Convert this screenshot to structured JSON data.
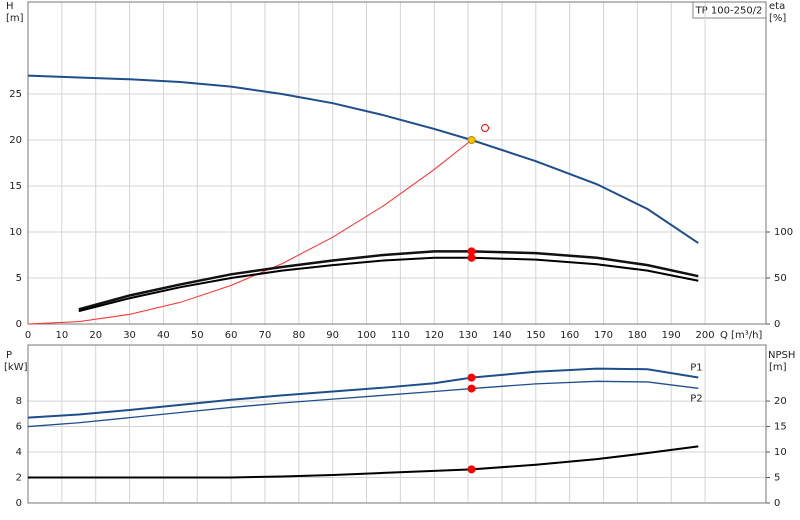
{
  "chart_data": [
    {
      "type": "line",
      "title": "TP 100-250/2",
      "xlabel": "Q [m³/h]",
      "ylabel": "H",
      "yunit": "[m]",
      "y2label": "eta",
      "y2unit": "[%]",
      "x": [
        0,
        15,
        30,
        45,
        60,
        75,
        90,
        105,
        120,
        131,
        150,
        168,
        183,
        198
      ],
      "xlim": [
        0,
        218
      ],
      "xticks": [
        0,
        10,
        20,
        30,
        40,
        50,
        60,
        70,
        80,
        90,
        100,
        110,
        120,
        130,
        140,
        150,
        160,
        170,
        180,
        190,
        200
      ],
      "ylim": [
        0,
        35
      ],
      "yticks": [
        0,
        5,
        10,
        15,
        20,
        25
      ],
      "y2lim": [
        0,
        350
      ],
      "y2ticks": [
        0,
        50,
        100
      ],
      "grid": true,
      "series": [
        {
          "color": "#1f4e8c",
          "values": [
            27.0,
            26.8,
            26.6,
            26.3,
            25.8,
            25.0,
            24.0,
            22.7,
            21.2,
            20.0,
            17.7,
            15.2,
            12.5,
            8.8
          ]
        },
        {
          "color": "#ff3030",
          "values": [
            0,
            0.26,
            1.05,
            2.36,
            4.2,
            6.55,
            9.44,
            12.85,
            16.8,
            20.0,
            null,
            null,
            null,
            null
          ]
        },
        {
          "color": "#111111",
          "axis": "y2",
          "values": [
            null,
            16,
            31,
            43,
            54,
            62,
            69,
            75,
            79,
            79,
            77,
            72,
            64,
            52
          ]
        },
        {
          "color": "#000000",
          "axis": "y2",
          "values": [
            null,
            14,
            28,
            40,
            50,
            58,
            64,
            69,
            72,
            72,
            70,
            65,
            58,
            47
          ]
        }
      ],
      "markers": [
        {
          "x": 131,
          "y": 20,
          "color": "#f5c400"
        },
        {
          "x": 131,
          "y": 79,
          "axis": "y2",
          "color": "#ff0000"
        },
        {
          "x": 131,
          "y": 72,
          "axis": "y2",
          "color": "#ff0000"
        },
        {
          "x": 135,
          "y": 21.3,
          "color": "#ff0000",
          "hollow": true
        }
      ]
    },
    {
      "type": "line",
      "ylabel": "P",
      "yunit": "[kW]",
      "y2label": "NPSH",
      "y2unit": "[m]",
      "x": [
        0,
        15,
        30,
        45,
        60,
        75,
        90,
        105,
        120,
        131,
        150,
        168,
        183,
        198
      ],
      "xlim": [
        0,
        218
      ],
      "xticks": [
        0,
        10,
        20,
        30,
        40,
        50,
        60,
        70,
        80,
        90,
        100,
        110,
        120,
        130,
        140,
        150,
        160,
        170,
        180,
        190,
        200
      ],
      "ylim": [
        0,
        12.4
      ],
      "yticks": [
        0,
        2,
        4,
        6,
        8
      ],
      "y2lim": [
        0,
        31
      ],
      "y2ticks": [
        0,
        5,
        10,
        15,
        20
      ],
      "grid": true,
      "series": [
        {
          "name": "P1",
          "color": "#1f4e8c",
          "values": [
            6.7,
            6.95,
            7.3,
            7.7,
            8.1,
            8.45,
            8.75,
            9.05,
            9.4,
            9.84,
            10.3,
            10.55,
            10.5,
            9.85
          ]
        },
        {
          "name": "P2",
          "color": "#1f4e8c",
          "values": [
            6.0,
            6.3,
            6.7,
            7.1,
            7.5,
            7.85,
            8.15,
            8.45,
            8.75,
            8.98,
            9.35,
            9.55,
            9.5,
            9.0
          ]
        },
        {
          "color": "#000000",
          "axis": "y2",
          "values": [
            5.0,
            5.0,
            5.0,
            5.0,
            5.0,
            5.2,
            5.5,
            5.9,
            6.3,
            6.6,
            7.5,
            8.6,
            9.8,
            11.1
          ]
        }
      ],
      "markers": [
        {
          "x": 131,
          "y": 9.84,
          "color": "#ff0000"
        },
        {
          "x": 131,
          "y": 8.98,
          "color": "#ff0000"
        },
        {
          "x": 131,
          "y": 6.6,
          "axis": "y2",
          "color": "#ff0000"
        }
      ]
    }
  ]
}
